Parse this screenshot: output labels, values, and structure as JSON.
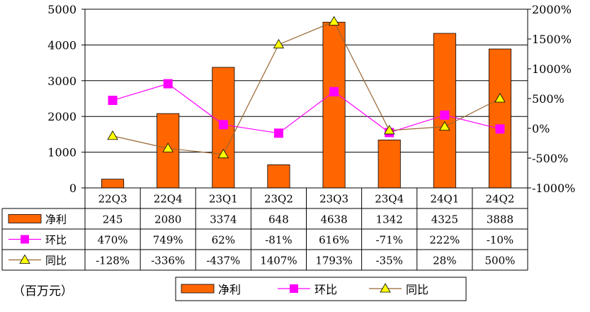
{
  "chart_data": {
    "type": "bar",
    "categories": [
      "22Q3",
      "22Q4",
      "23Q1",
      "23Q2",
      "23Q3",
      "23Q4",
      "24Q1",
      "24Q2"
    ],
    "series": [
      {
        "name": "净利",
        "kind": "bar",
        "axis": "left",
        "color": "#FF6600",
        "values": [
          245,
          2080,
          3374,
          648,
          4638,
          1342,
          4325,
          3888
        ],
        "labels": [
          "245",
          "2080",
          "3374",
          "648",
          "4638",
          "1342",
          "4325",
          "3888"
        ]
      },
      {
        "name": "环比",
        "kind": "line",
        "axis": "right",
        "color": "#FF00FF",
        "marker": "square",
        "values": [
          470,
          749,
          62,
          -81,
          616,
          -71,
          222,
          -10
        ],
        "labels": [
          "470%",
          "749%",
          "62%",
          "-81%",
          "616%",
          "-71%",
          "222%",
          "-10%"
        ]
      },
      {
        "name": "同比",
        "kind": "line",
        "axis": "right",
        "color": "#996633",
        "marker": "triangle",
        "marker_color": "#FFFF00",
        "values": [
          -128,
          -336,
          -437,
          1407,
          1793,
          -35,
          28,
          500
        ],
        "labels": [
          "-128%",
          "-336%",
          "-437%",
          "1407%",
          "1793%",
          "-35%",
          "28%",
          "500%"
        ]
      }
    ],
    "y_left": {
      "lim": [
        0,
        5000
      ],
      "ticks": [
        0,
        1000,
        2000,
        3000,
        4000,
        5000
      ],
      "tick_labels": [
        "0",
        "1000",
        "2000",
        "3000",
        "4000",
        "5000"
      ]
    },
    "y_right": {
      "lim": [
        -1000,
        2000
      ],
      "ticks": [
        -1000,
        -500,
        0,
        500,
        1000,
        1500,
        2000
      ],
      "tick_labels": [
        "-1000%",
        "-500%",
        "0%",
        "500%",
        "1000%",
        "1500%",
        "2000%"
      ]
    },
    "grid": true,
    "legend": "bottom",
    "unit_label": "（百万元）"
  }
}
